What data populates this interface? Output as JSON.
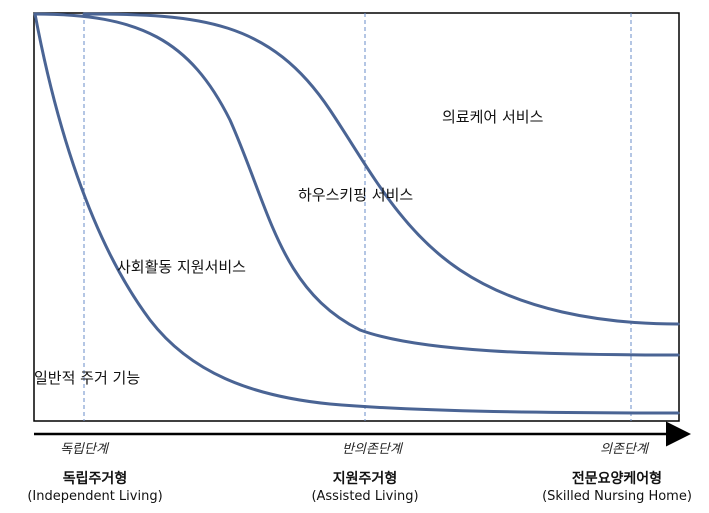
{
  "regions": {
    "medical_care": "의료케어 서비스",
    "housekeeping": "하우스키핑 서비스",
    "social_support": "사회활동 지원서비스",
    "general_housing": "일반적 주거 기능"
  },
  "stages": [
    {
      "label": "독립단계"
    },
    {
      "label": "반의존단계"
    },
    {
      "label": "의존단계"
    }
  ],
  "housing_types": [
    {
      "korean": "독립주거형",
      "english": "(Independent Living)"
    },
    {
      "korean": "지원주거형",
      "english": "(Assisted Living)"
    },
    {
      "korean": "전문요양케어형",
      "english": "(Skilled Nursing Home)"
    }
  ],
  "colors": {
    "curve": "#4a6494",
    "divider": "#6a8cc8",
    "frame": "#000000"
  }
}
